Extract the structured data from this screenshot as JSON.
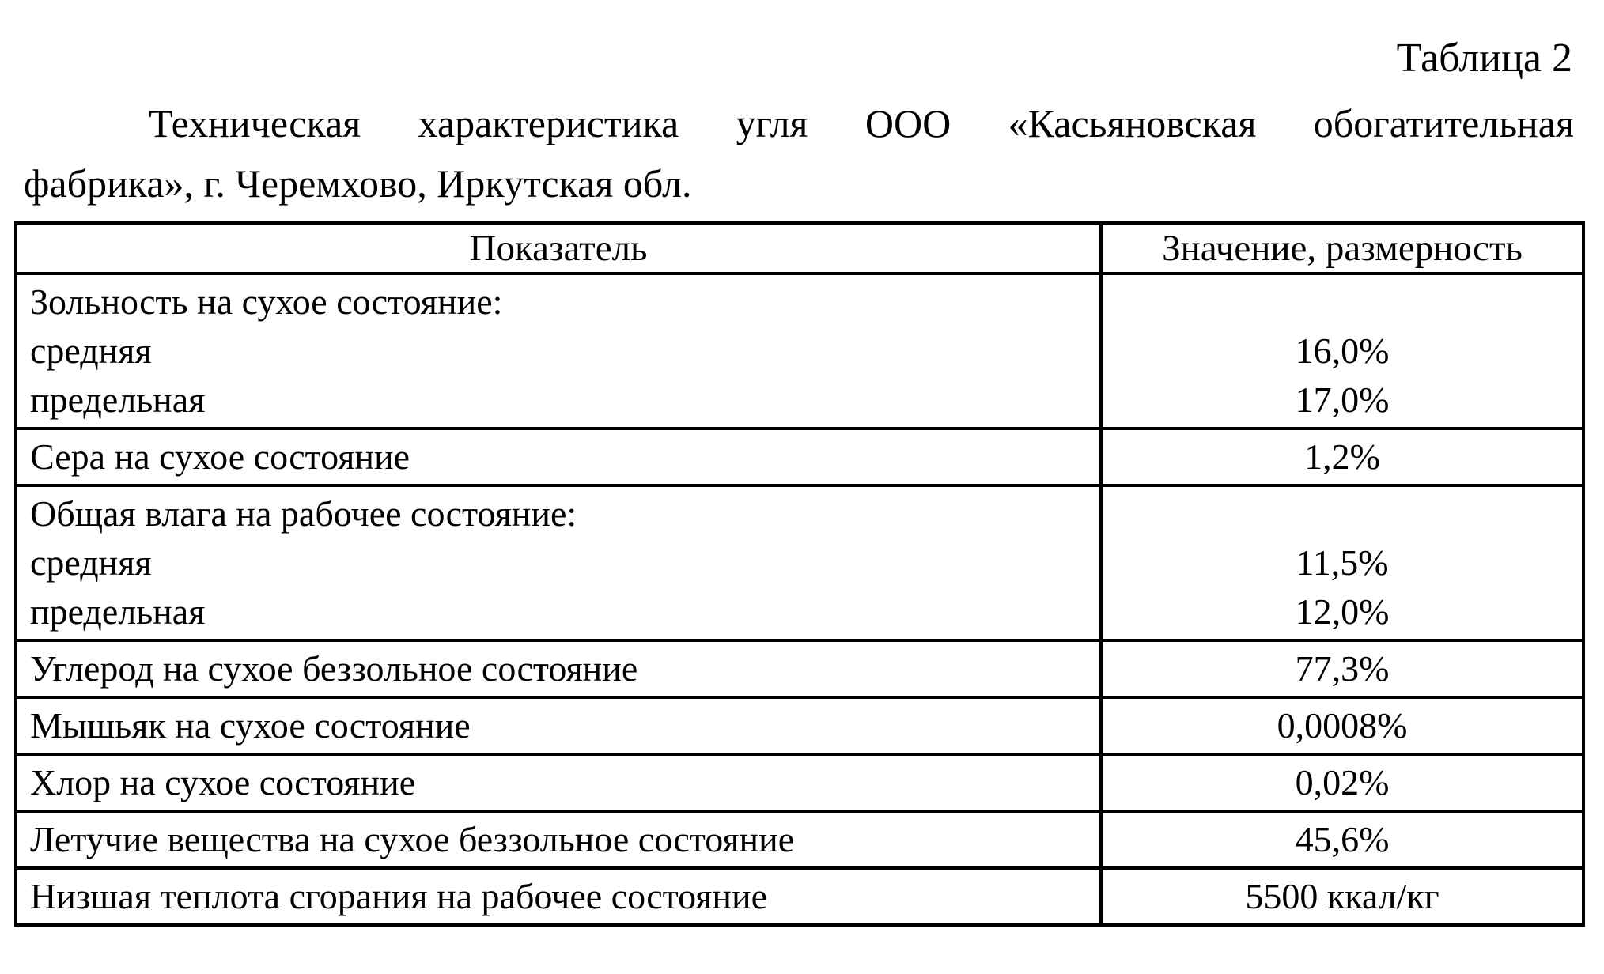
{
  "page": {
    "table_label": "Таблица 2",
    "title_line1": "Техническая характеристика угля ООО «Касьяновская обогатительная",
    "title_line2": "фабрика», г. Черемхово, Иркутская обл."
  },
  "table": {
    "headers": [
      "Показатель",
      "Значение, размерность"
    ],
    "rows": [
      {
        "indicator_lines": [
          "Зольность на сухое состояние:",
          "средняя",
          "предельная"
        ],
        "value_lines": [
          "",
          "16,0%",
          "17,0%"
        ]
      },
      {
        "indicator_lines": [
          "Сера на сухое состояние"
        ],
        "value_lines": [
          "1,2%"
        ]
      },
      {
        "indicator_lines": [
          "Общая влага на рабочее состояние:",
          "средняя",
          "предельная"
        ],
        "value_lines": [
          "",
          "11,5%",
          "12,0%"
        ]
      },
      {
        "indicator_lines": [
          "Углерод на сухое беззольное состояние"
        ],
        "value_lines": [
          "77,3%"
        ]
      },
      {
        "indicator_lines": [
          "Мышьяк на сухое состояние"
        ],
        "value_lines": [
          "0,0008%"
        ]
      },
      {
        "indicator_lines": [
          "Хлор на сухое состояние"
        ],
        "value_lines": [
          "0,02%"
        ]
      },
      {
        "indicator_lines": [
          "Летучие вещества на сухое беззольное состояние"
        ],
        "value_lines": [
          "45,6%"
        ]
      },
      {
        "indicator_lines": [
          "Низшая теплота сгорания на рабочее состояние"
        ],
        "value_lines": [
          "5500 ккал/кг"
        ]
      }
    ]
  }
}
